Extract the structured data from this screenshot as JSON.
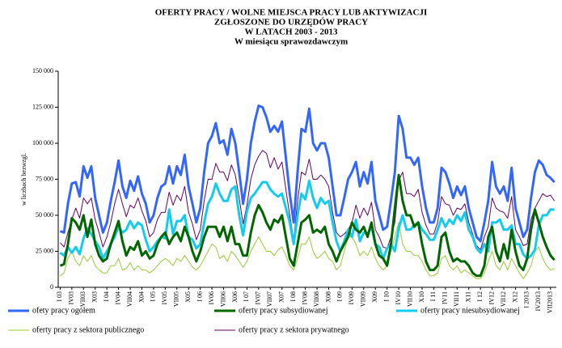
{
  "chart_data": {
    "type": "line",
    "title": [
      "OFERTY PRACY / WOLNE MIEJSCA  PRACY  LUB  AKTYWIZACJI",
      "ZGŁOSZONE  DO  URZĘDÓW  PRACY",
      "W  LATACH  2003 - 2013",
      "W  miesiącu  sprawozdawczym"
    ],
    "ylabel": "w liczbach bezwzgl.",
    "ylim": [
      0,
      150000
    ],
    "yticks": [
      {
        "value": 0,
        "label": "0"
      },
      {
        "value": 25000,
        "label": "25 000"
      },
      {
        "value": 50000,
        "label": "50 000"
      },
      {
        "value": 75000,
        "label": "75 000"
      },
      {
        "value": 100000,
        "label": "100 000"
      },
      {
        "value": 125000,
        "label": "125 000"
      },
      {
        "value": 150000,
        "label": "150 000"
      }
    ],
    "categories": [
      "I 03",
      null,
      null,
      "IV03",
      null,
      null,
      "VII03",
      null,
      null,
      "X03",
      null,
      null,
      "I 04",
      null,
      null,
      "IV04",
      null,
      null,
      "VII04",
      null,
      null,
      "X04",
      null,
      null,
      "I 05",
      null,
      null,
      "IV05",
      null,
      null,
      "VII05",
      null,
      null,
      "X05",
      null,
      null,
      "I 06",
      null,
      null,
      "IV06",
      null,
      null,
      "VII06",
      null,
      null,
      "X06",
      null,
      null,
      "I 07",
      null,
      null,
      "IV07",
      null,
      null,
      "VII07",
      null,
      null,
      "X07",
      null,
      null,
      "I 08",
      null,
      null,
      "IV08",
      null,
      null,
      "VII08",
      null,
      null,
      "X08",
      null,
      null,
      "I 09",
      null,
      null,
      "IV09",
      null,
      null,
      "VII09",
      null,
      null,
      "X09",
      null,
      null,
      "I 10",
      null,
      null,
      "IV10",
      null,
      null,
      "VII10",
      null,
      null,
      "X10",
      null,
      null,
      "I 11",
      null,
      null,
      "IV11",
      null,
      null,
      "VII11",
      null,
      null,
      "X11",
      null,
      null,
      "I 12",
      null,
      null,
      "IV12",
      null,
      null,
      "VII12",
      null,
      null,
      "X12",
      null,
      null,
      "I 2013",
      null,
      null,
      "IV2013",
      null,
      null,
      "VII2013",
      null
    ],
    "series": [
      {
        "name": "ofety pracy ogółem",
        "color": "#3366ff",
        "width": 3,
        "values": [
          39000,
          38000,
          58000,
          72000,
          73000,
          63000,
          84000,
          76000,
          84000,
          62000,
          50000,
          38000,
          45000,
          60000,
          73000,
          88000,
          70000,
          62000,
          74000,
          67000,
          77000,
          65000,
          58000,
          45000,
          50000,
          62000,
          70000,
          72000,
          84000,
          72000,
          84000,
          78000,
          92000,
          70000,
          58000,
          45000,
          55000,
          80000,
          100000,
          105000,
          114000,
          100000,
          102000,
          92000,
          110000,
          100000,
          80000,
          58000,
          75000,
          100000,
          115000,
          126000,
          125000,
          118000,
          108000,
          112000,
          108000,
          115000,
          90000,
          65000,
          45000,
          80000,
          110000,
          108000,
          124000,
          100000,
          95000,
          100000,
          100000,
          90000,
          70000,
          50000,
          50000,
          62000,
          75000,
          80000,
          87000,
          70000,
          80000,
          72000,
          87000,
          60000,
          50000,
          40000,
          42000,
          60000,
          80000,
          119000,
          110000,
          90000,
          90000,
          85000,
          90000,
          70000,
          55000,
          45000,
          45000,
          55000,
          83000,
          80000,
          72000,
          62000,
          70000,
          64000,
          70000,
          55000,
          45000,
          35000,
          32000,
          45000,
          60000,
          87000,
          70000,
          65000,
          70000,
          60000,
          83000,
          55000,
          45000,
          35000,
          40000,
          62000,
          80000,
          88000,
          85000,
          78000,
          76000,
          73000
        ]
      },
      {
        "name": "oferty pracy subsydiowanej",
        "color": "#006600",
        "width": 3,
        "values": [
          15000,
          16000,
          30000,
          48000,
          45000,
          40000,
          50000,
          35000,
          47000,
          30000,
          22000,
          18000,
          20000,
          30000,
          38000,
          46000,
          32000,
          22000,
          28000,
          26000,
          32000,
          22000,
          25000,
          20000,
          22000,
          30000,
          35000,
          38000,
          30000,
          35000,
          38000,
          32000,
          42000,
          35000,
          25000,
          18000,
          25000,
          35000,
          42000,
          42000,
          42000,
          35000,
          42000,
          32000,
          42000,
          30000,
          30000,
          22000,
          22000,
          38000,
          50000,
          57000,
          52000,
          45000,
          40000,
          47000,
          45000,
          50000,
          35000,
          20000,
          15000,
          30000,
          45000,
          47000,
          50000,
          38000,
          40000,
          38000,
          42000,
          30000,
          25000,
          18000,
          25000,
          30000,
          35000,
          45000,
          40000,
          38000,
          42000,
          35000,
          45000,
          30000,
          22000,
          20000,
          15000,
          30000,
          55000,
          78000,
          60000,
          50000,
          50000,
          42000,
          45000,
          30000,
          18000,
          12000,
          12000,
          15000,
          35000,
          38000,
          25000,
          18000,
          20000,
          18000,
          18000,
          15000,
          10000,
          8000,
          8000,
          15000,
          35000,
          42000,
          25000,
          18000,
          30000,
          20000,
          40000,
          25000,
          15000,
          12000,
          20000,
          40000,
          54000,
          45000,
          35000,
          28000,
          22000,
          19000
        ]
      },
      {
        "name": "oferty pracy niesubsydiowanej",
        "color": "#11ccee",
        "width": 3,
        "values": [
          24000,
          22000,
          28000,
          24000,
          28000,
          23000,
          34000,
          41000,
          37000,
          32000,
          28000,
          20000,
          25000,
          30000,
          35000,
          42000,
          38000,
          40000,
          46000,
          41000,
          45000,
          43000,
          33000,
          25000,
          28000,
          32000,
          35000,
          34000,
          54000,
          37000,
          46000,
          46000,
          50000,
          35000,
          33000,
          27000,
          30000,
          45000,
          58000,
          63000,
          72000,
          65000,
          60000,
          60000,
          68000,
          70000,
          50000,
          36000,
          53000,
          62000,
          65000,
          69000,
          73000,
          73000,
          68000,
          65000,
          63000,
          65000,
          55000,
          45000,
          30000,
          50000,
          65000,
          61000,
          74000,
          62000,
          55000,
          62000,
          58000,
          60000,
          45000,
          32000,
          25000,
          32000,
          40000,
          35000,
          47000,
          32000,
          38000,
          37000,
          42000,
          30000,
          28000,
          20000,
          27000,
          30000,
          25000,
          41000,
          50000,
          40000,
          40000,
          43000,
          45000,
          40000,
          37000,
          33000,
          33000,
          40000,
          48000,
          42000,
          47000,
          44000,
          50000,
          46000,
          52000,
          40000,
          35000,
          27000,
          24000,
          30000,
          25000,
          45000,
          45000,
          47000,
          40000,
          40000,
          43000,
          30000,
          30000,
          23000,
          20000,
          22000,
          26000,
          43000,
          50000,
          50000,
          54000,
          54000
        ]
      },
      {
        "name": "oferty pracy z sektora publicznego",
        "color": "#99cc33",
        "width": 1,
        "values": [
          8000,
          10000,
          20000,
          25000,
          18000,
          15000,
          22000,
          18000,
          22000,
          15000,
          12000,
          10000,
          10000,
          15000,
          15000,
          20000,
          12000,
          13000,
          17000,
          12000,
          15000,
          12000,
          12000,
          10000,
          12000,
          15000,
          18000,
          20000,
          18000,
          15000,
          20000,
          18000,
          22000,
          18000,
          14000,
          12000,
          15000,
          20000,
          25000,
          30000,
          28000,
          20000,
          22000,
          18000,
          25000,
          22000,
          18000,
          14000,
          18000,
          25000,
          30000,
          35000,
          30000,
          25000,
          25000,
          22000,
          26000,
          28000,
          22000,
          15000,
          12000,
          20000,
          30000,
          30000,
          35000,
          25000,
          20000,
          22000,
          25000,
          20000,
          18000,
          12000,
          15000,
          25000,
          35000,
          35000,
          30000,
          22000,
          25000,
          22000,
          28000,
          20000,
          15000,
          12000,
          15000,
          25000,
          35000,
          45000,
          30000,
          25000,
          25000,
          22000,
          22000,
          18000,
          12000,
          8000,
          8000,
          10000,
          20000,
          22000,
          15000,
          12000,
          15000,
          10000,
          12000,
          10000,
          8000,
          6000,
          6000,
          10000,
          18000,
          25000,
          15000,
          12000,
          18000,
          12000,
          20000,
          15000,
          10000,
          6000,
          10000,
          15000,
          25000,
          28000,
          20000,
          15000,
          12000,
          13000
        ]
      },
      {
        "name": "oferty pracy z sektora prywatnego",
        "color": "#660066",
        "width": 1,
        "values": [
          31000,
          28000,
          38000,
          47000,
          55000,
          48000,
          62000,
          58000,
          62000,
          47000,
          38000,
          28000,
          35000,
          45000,
          58000,
          68000,
          58000,
          49000,
          57000,
          55000,
          62000,
          53000,
          46000,
          35000,
          38000,
          47000,
          52000,
          52000,
          66000,
          57000,
          64000,
          60000,
          70000,
          52000,
          44000,
          33000,
          40000,
          60000,
          75000,
          75000,
          86000,
          80000,
          80000,
          74000,
          85000,
          78000,
          62000,
          44000,
          57000,
          75000,
          85000,
          91000,
          95000,
          93000,
          83000,
          90000,
          82000,
          87000,
          68000,
          50000,
          33000,
          60000,
          80000,
          78000,
          89000,
          75000,
          75000,
          78000,
          75000,
          70000,
          52000,
          38000,
          35000,
          37000,
          40000,
          45000,
          57000,
          48000,
          55000,
          50000,
          59000,
          40000,
          35000,
          28000,
          27000,
          35000,
          45000,
          74000,
          80000,
          65000,
          65000,
          63000,
          68000,
          52000,
          43000,
          37000,
          37000,
          45000,
          63000,
          58000,
          57000,
          50000,
          55000,
          54000,
          58000,
          45000,
          37000,
          29000,
          26000,
          35000,
          42000,
          62000,
          55000,
          53000,
          52000,
          48000,
          63000,
          40000,
          35000,
          29000,
          30000,
          47000,
          55000,
          60000,
          65000,
          63000,
          64000,
          60000
        ]
      }
    ]
  }
}
